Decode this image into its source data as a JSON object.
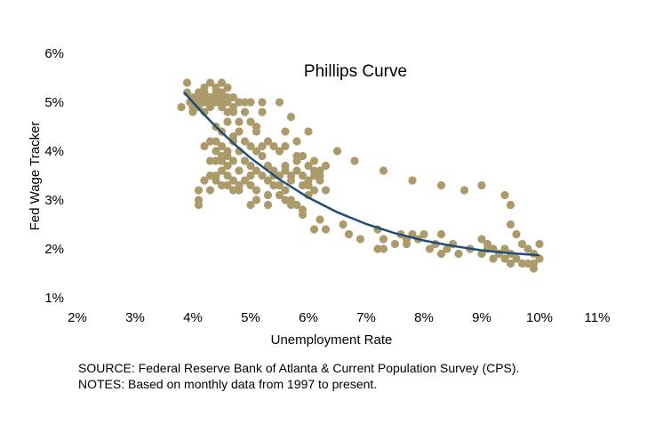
{
  "chart_data": {
    "type": "scatter",
    "title": "Phillips Curve",
    "xlabel": "Unemployment Rate",
    "ylabel": "Fed Wage Tracker",
    "xlim": [
      2,
      11
    ],
    "ylim": [
      1,
      6
    ],
    "x_ticks": [
      "2%",
      "3%",
      "4%",
      "5%",
      "6%",
      "7%",
      "8%",
      "9%",
      "10%",
      "11%"
    ],
    "y_ticks": [
      "1%",
      "2%",
      "3%",
      "4%",
      "5%",
      "6%"
    ],
    "grid": false,
    "legend": "none",
    "colors": {
      "points": "#ad9a6b",
      "fit": "#1f4e79"
    },
    "series": [
      {
        "type": "scatter",
        "points": [
          [
            3.8,
            4.9
          ],
          [
            3.9,
            5.2
          ],
          [
            3.9,
            5.4
          ],
          [
            4.0,
            5.1
          ],
          [
            4.0,
            4.8
          ],
          [
            4.0,
            5.0
          ],
          [
            4.1,
            5.2
          ],
          [
            4.1,
            4.9
          ],
          [
            4.1,
            5.0
          ],
          [
            4.2,
            5.1
          ],
          [
            4.2,
            5.3
          ],
          [
            4.2,
            4.8
          ],
          [
            4.2,
            5.2
          ],
          [
            4.3,
            5.0
          ],
          [
            4.3,
            5.4
          ],
          [
            4.3,
            5.1
          ],
          [
            4.3,
            4.9
          ],
          [
            4.4,
            5.2
          ],
          [
            4.4,
            5.0
          ],
          [
            4.4,
            5.3
          ],
          [
            4.5,
            5.1
          ],
          [
            4.5,
            5.4
          ],
          [
            4.5,
            4.9
          ],
          [
            4.5,
            5.2
          ],
          [
            4.6,
            5.0
          ],
          [
            4.6,
            4.8
          ],
          [
            4.6,
            5.3
          ],
          [
            4.7,
            5.1
          ],
          [
            4.7,
            4.9
          ],
          [
            4.8,
            5.0
          ],
          [
            4.9,
            5.0
          ],
          [
            5.0,
            5.0
          ],
          [
            5.1,
            4.5
          ],
          [
            5.2,
            5.0
          ],
          [
            5.3,
            4.2
          ],
          [
            5.5,
            5.0
          ],
          [
            5.6,
            4.4
          ],
          [
            5.7,
            4.7
          ],
          [
            5.8,
            4.2
          ],
          [
            4.1,
            3.2
          ],
          [
            4.1,
            3.0
          ],
          [
            4.1,
            2.9
          ],
          [
            4.2,
            3.4
          ],
          [
            4.3,
            3.5
          ],
          [
            4.3,
            3.2
          ],
          [
            4.4,
            3.4
          ],
          [
            4.4,
            4.2
          ],
          [
            4.4,
            4.0
          ],
          [
            4.4,
            3.8
          ],
          [
            4.5,
            4.1
          ],
          [
            4.5,
            3.9
          ],
          [
            4.5,
            3.6
          ],
          [
            4.5,
            4.4
          ],
          [
            4.6,
            4.6
          ],
          [
            4.6,
            3.5
          ],
          [
            4.6,
            3.3
          ],
          [
            4.7,
            4.2
          ],
          [
            4.7,
            3.8
          ],
          [
            4.7,
            3.4
          ],
          [
            4.7,
            4.8
          ],
          [
            4.8,
            4.0
          ],
          [
            4.8,
            3.6
          ],
          [
            4.8,
            3.2
          ],
          [
            4.8,
            4.4
          ],
          [
            4.9,
            4.2
          ],
          [
            4.9,
            3.8
          ],
          [
            4.9,
            3.4
          ],
          [
            5.0,
            4.1
          ],
          [
            5.0,
            3.7
          ],
          [
            5.0,
            3.3
          ],
          [
            5.0,
            2.9
          ],
          [
            5.1,
            4.0
          ],
          [
            5.1,
            3.6
          ],
          [
            5.1,
            3.2
          ],
          [
            5.1,
            3.0
          ],
          [
            5.2,
            3.9
          ],
          [
            5.2,
            3.5
          ],
          [
            5.3,
            3.4
          ],
          [
            5.3,
            3.1
          ],
          [
            5.4,
            3.6
          ],
          [
            5.4,
            4.1
          ],
          [
            5.5,
            3.5
          ],
          [
            5.5,
            3.3
          ],
          [
            5.6,
            3.7
          ],
          [
            5.6,
            3.2
          ],
          [
            5.6,
            4.1
          ],
          [
            5.7,
            3.4
          ],
          [
            5.7,
            3.0
          ],
          [
            5.8,
            3.6
          ],
          [
            5.8,
            3.9
          ],
          [
            5.8,
            2.9
          ],
          [
            5.9,
            3.5
          ],
          [
            5.9,
            2.8
          ],
          [
            6.0,
            3.7
          ],
          [
            6.0,
            3.3
          ],
          [
            6.0,
            4.4
          ],
          [
            6.1,
            3.5
          ],
          [
            6.1,
            3.8
          ],
          [
            6.2,
            3.6
          ],
          [
            6.2,
            3.4
          ],
          [
            6.3,
            3.7
          ],
          [
            6.5,
            4.0
          ],
          [
            6.8,
            3.8
          ],
          [
            7.3,
            3.6
          ],
          [
            7.8,
            3.4
          ],
          [
            8.3,
            3.3
          ],
          [
            8.7,
            3.2
          ],
          [
            9.0,
            3.3
          ],
          [
            9.4,
            3.1
          ],
          [
            9.5,
            2.9
          ],
          [
            9.5,
            2.5
          ],
          [
            9.6,
            2.3
          ],
          [
            6.1,
            2.4
          ],
          [
            6.2,
            2.6
          ],
          [
            6.3,
            2.4
          ],
          [
            6.6,
            2.5
          ],
          [
            6.7,
            2.3
          ],
          [
            6.9,
            2.2
          ],
          [
            7.2,
            2.4
          ],
          [
            7.2,
            2.0
          ],
          [
            7.3,
            2.2
          ],
          [
            7.5,
            2.1
          ],
          [
            7.6,
            2.3
          ],
          [
            7.7,
            2.2
          ],
          [
            7.8,
            2.3
          ],
          [
            7.9,
            2.2
          ],
          [
            8.0,
            2.3
          ],
          [
            8.1,
            2.0
          ],
          [
            8.2,
            2.1
          ],
          [
            8.3,
            2.3
          ],
          [
            8.3,
            1.9
          ],
          [
            8.4,
            2.0
          ],
          [
            8.6,
            1.9
          ],
          [
            8.8,
            2.0
          ],
          [
            9.0,
            2.2
          ],
          [
            9.0,
            1.9
          ],
          [
            9.1,
            2.1
          ],
          [
            9.1,
            2.0
          ],
          [
            9.2,
            2.0
          ],
          [
            9.3,
            1.9
          ],
          [
            9.4,
            2.0
          ],
          [
            9.4,
            1.8
          ],
          [
            9.5,
            1.9
          ],
          [
            9.6,
            1.8
          ],
          [
            9.7,
            2.1
          ],
          [
            9.8,
            2.0
          ],
          [
            9.8,
            1.7
          ],
          [
            9.9,
            1.7
          ],
          [
            9.9,
            1.6
          ],
          [
            10.0,
            2.1
          ],
          [
            10.0,
            1.8
          ],
          [
            9.5,
            1.7
          ],
          [
            9.7,
            1.7
          ],
          [
            9.9,
            1.9
          ],
          [
            9.2,
            1.8
          ],
          [
            8.5,
            2.1
          ],
          [
            7.7,
            2.1
          ],
          [
            7.3,
            2.0
          ],
          [
            5.3,
            2.9
          ],
          [
            5.5,
            3.1
          ],
          [
            4.9,
            3.4
          ],
          [
            4.7,
            3.2
          ],
          [
            4.6,
            3.7
          ],
          [
            4.3,
            4.2
          ],
          [
            4.2,
            4.1
          ],
          [
            4.4,
            4.5
          ],
          [
            4.9,
            4.8
          ],
          [
            5.0,
            4.6
          ],
          [
            5.2,
            4.8
          ],
          [
            4.8,
            4.6
          ],
          [
            4.6,
            5.1
          ],
          [
            4.5,
            5.0
          ],
          [
            4.4,
            5.1
          ],
          [
            4.2,
            5.0
          ],
          [
            4.1,
            5.1
          ],
          [
            3.95,
            5.0
          ],
          [
            4.0,
            4.9
          ],
          [
            5.6,
            3.0
          ],
          [
            5.7,
            2.9
          ],
          [
            5.9,
            2.7
          ],
          [
            6.0,
            3.1
          ],
          [
            6.1,
            3.2
          ],
          [
            6.2,
            3.5
          ],
          [
            6.3,
            3.2
          ],
          [
            5.4,
            3.5
          ],
          [
            5.3,
            3.7
          ],
          [
            5.2,
            4.1
          ],
          [
            5.1,
            4.4
          ],
          [
            5.5,
            4.0
          ],
          [
            5.8,
            3.8
          ],
          [
            5.9,
            3.3
          ],
          [
            4.5,
            3.3
          ],
          [
            4.4,
            3.5
          ],
          [
            4.3,
            3.8
          ],
          [
            4.5,
            3.8
          ],
          [
            4.6,
            4.0
          ],
          [
            4.6,
            3.9
          ],
          [
            4.8,
            3.3
          ],
          [
            5.0,
            3.5
          ],
          [
            5.4,
            3.3
          ],
          [
            5.6,
            3.6
          ],
          [
            5.7,
            3.5
          ],
          [
            6.0,
            3.4
          ],
          [
            6.1,
            3.6
          ],
          [
            5.9,
            3.9
          ],
          [
            4.7,
            4.3
          ]
        ]
      },
      {
        "type": "line",
        "x": [
          3.85,
          4.0,
          4.25,
          4.5,
          4.75,
          5.0,
          5.5,
          6.0,
          6.5,
          7.0,
          7.5,
          8.0,
          8.5,
          9.0,
          9.5,
          10.0
        ],
        "y": [
          5.2,
          5.0,
          4.68,
          4.38,
          4.11,
          3.86,
          3.42,
          3.05,
          2.75,
          2.51,
          2.32,
          2.17,
          2.06,
          1.97,
          1.91,
          1.87
        ]
      }
    ]
  },
  "source_note": "SOURCE: Federal Reserve Bank of Atlanta & Current Population Survey (CPS).",
  "notes_note": "NOTES: Based on monthly data from 1997 to present."
}
